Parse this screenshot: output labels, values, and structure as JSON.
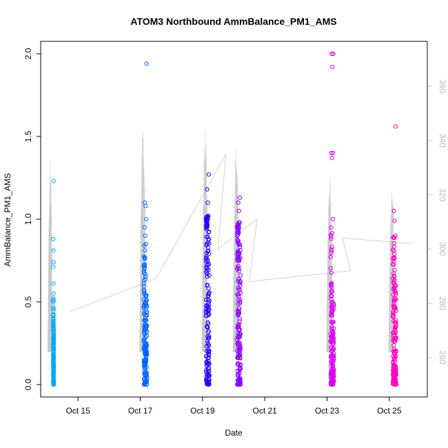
{
  "chart_data": {
    "type": "scatter",
    "title": "ATOM3 Northbound AmmBalance_PM1_AMS",
    "xlabel": "Date",
    "ylabel": "AmmBalance_PM1_AMS",
    "xlim": [
      "2015-10-14",
      "2015-10-26"
    ],
    "ylim": [
      0,
      2.0
    ],
    "x_ticks": [
      "Oct 15",
      "Oct 17",
      "Oct 19",
      "Oct 21",
      "Oct 23",
      "Oct 25"
    ],
    "y_ticks": [
      "0.0",
      "0.5",
      "1.0",
      "1.5",
      "2.0"
    ],
    "secondary_axis": {
      "side": "right",
      "color": "#b8b8b8",
      "ylim": [
        250,
        372
      ],
      "ticks": [
        "260",
        "280",
        "300",
        "320",
        "340",
        "360"
      ]
    },
    "grid": false,
    "legend": "none",
    "groups": [
      {
        "date_start": "2015-10-14",
        "date_end": "2015-10-15",
        "color": "#00a6ff",
        "typical_max": 0.35,
        "outliers": [
          1.23,
          0.88,
          0.81,
          0.74,
          0.71,
          0.61,
          0.55,
          0.52
        ]
      },
      {
        "date_start": "2015-10-17",
        "date_end": "2015-10-18",
        "color": "#0066ff",
        "typical_max": 0.55,
        "outliers": [
          1.94,
          1.1,
          1.08,
          1.0,
          0.95,
          0.9,
          0.85
        ]
      },
      {
        "date_start": "2015-10-19",
        "date_end": "2015-10-20",
        "color": "#2a00ff",
        "typical_max": 0.95,
        "outliers": [
          1.27,
          1.18,
          1.1,
          1.02
        ]
      },
      {
        "date_start": "2015-10-20",
        "date_end": "2015-10-21",
        "color": "#8a00ff",
        "typical_max": 0.85,
        "outliers": [
          1.13,
          1.1,
          1.05,
          0.98
        ]
      },
      {
        "date_start": "2015-10-23",
        "date_end": "2015-10-24",
        "color": "#d800f2",
        "typical_max": 0.5,
        "outliers": [
          2.0,
          2.0,
          1.92,
          1.4,
          1.4,
          1.37,
          1.0,
          0.95
        ]
      },
      {
        "date_start": "2015-10-25",
        "date_end": "2015-10-26",
        "color": "#ff00c0",
        "typical_max": 0.6,
        "outliers": [
          1.56,
          1.05,
          0.99,
          0.9
        ]
      }
    ],
    "secondary_series": {
      "color": "#c8c8c8",
      "baseline": [
        {
          "x": "2015-10-14",
          "y": 277
        },
        {
          "x": "2015-10-17",
          "y": 289
        },
        {
          "x": "2015-10-19",
          "y": 335
        },
        {
          "x": "2015-10-19",
          "y": 300
        },
        {
          "x": "2015-10-20",
          "y": 311
        },
        {
          "x": "2015-10-20",
          "y": 288
        },
        {
          "x": "2015-10-23",
          "y": 292
        },
        {
          "x": "2015-10-23",
          "y": 304
        },
        {
          "x": "2015-10-25",
          "y": 302
        }
      ],
      "spikes": [
        {
          "x": "2015-10-14",
          "y": 333
        },
        {
          "x": "2015-10-17",
          "y": 348
        },
        {
          "x": "2015-10-19",
          "y": 347
        },
        {
          "x": "2015-10-20",
          "y": 340
        },
        {
          "x": "2015-10-23",
          "y": 327
        },
        {
          "x": "2015-10-25",
          "y": 325
        }
      ]
    }
  }
}
